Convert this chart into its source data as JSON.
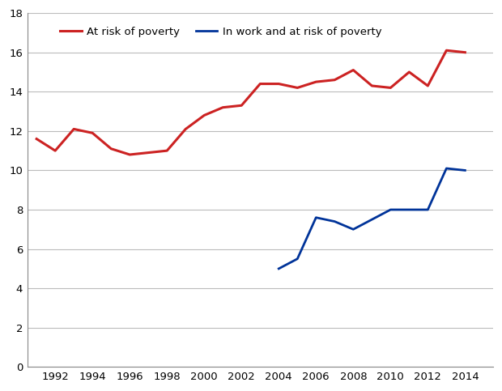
{
  "red_series": {
    "label": "At risk of poverty",
    "color": "#cc2222",
    "linewidth": 2.2,
    "x": [
      1991,
      1992,
      1993,
      1994,
      1995,
      1996,
      1997,
      1998,
      1999,
      2000,
      2001,
      2002,
      2003,
      2004,
      2005,
      2006,
      2007,
      2008,
      2009,
      2010,
      2011,
      2012,
      2013,
      2014
    ],
    "y": [
      11.6,
      11.0,
      12.1,
      11.9,
      11.1,
      10.8,
      10.9,
      11.0,
      12.1,
      12.8,
      13.2,
      13.3,
      14.4,
      14.4,
      14.2,
      14.5,
      14.6,
      15.1,
      14.3,
      14.2,
      15.0,
      14.3,
      16.1,
      16.0
    ]
  },
  "blue_series": {
    "label": "In work and at risk of poverty",
    "color": "#003399",
    "linewidth": 2.0,
    "x": [
      2004,
      2005,
      2006,
      2007,
      2008,
      2009,
      2010,
      2011,
      2012,
      2013,
      2014
    ],
    "y": [
      5.0,
      5.5,
      7.6,
      7.4,
      7.0,
      7.5,
      8.0,
      8.0,
      8.0,
      10.1,
      10.0
    ]
  },
  "xlim": [
    1990.5,
    2015.5
  ],
  "ylim": [
    0,
    18
  ],
  "yticks": [
    0,
    2,
    4,
    6,
    8,
    10,
    12,
    14,
    16,
    18
  ],
  "xticks": [
    1992,
    1994,
    1996,
    1998,
    2000,
    2002,
    2004,
    2006,
    2008,
    2010,
    2012,
    2014
  ],
  "grid_color": "#bbbbbb",
  "bg_color": "#ffffff",
  "legend_fontsize": 9.5,
  "tick_fontsize": 9.5,
  "spine_color": "#888888"
}
